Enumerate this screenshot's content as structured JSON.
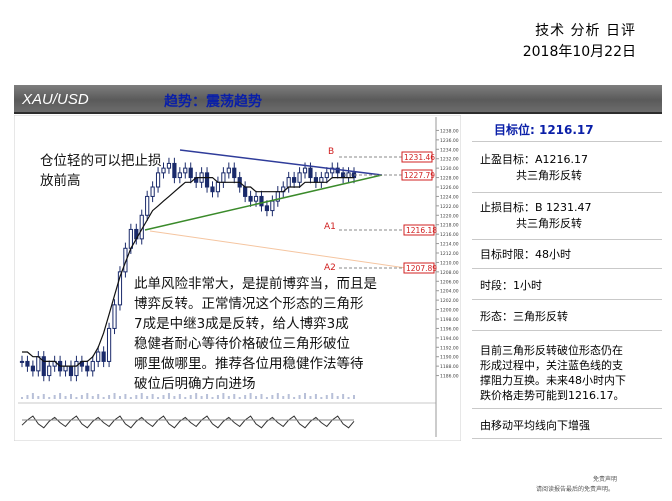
{
  "header": {
    "title": "技术 分析 日评",
    "date": "2018年10月22日"
  },
  "band": {
    "pair": "XAU/USD",
    "trend": "趋势：震荡趋势"
  },
  "chart_annotations": {
    "marker_b": "B",
    "marker_a1": "A1",
    "marker_a2": "A2",
    "level_b": "1231.46",
    "level_current": "1227.79",
    "level_a1": "1216.18",
    "level_a2": "1207.89"
  },
  "chart_data": {
    "type": "line",
    "price_axis_ticks": [
      "1238.00",
      "1236.00",
      "1234.00",
      "1232.00",
      "1230.00",
      "1228.00",
      "1226.00",
      "1224.00",
      "1222.00",
      "1220.00",
      "1218.00",
      "1216.00",
      "1214.00",
      "1212.00",
      "1210.00",
      "1208.00",
      "1206.00",
      "1204.00",
      "1202.00",
      "1200.00",
      "1198.00",
      "1196.00",
      "1194.00",
      "1192.00",
      "1190.00",
      "1188.00",
      "1186.00"
    ],
    "ylim": [
      1184,
      1240
    ],
    "close": [
      1189,
      1188,
      1187,
      1190,
      1186,
      1188,
      1189,
      1187,
      1188,
      1186,
      1189,
      1188,
      1187,
      1189,
      1191,
      1189,
      1196,
      1201,
      1208,
      1213,
      1217,
      1215,
      1220,
      1224,
      1226,
      1229,
      1230,
      1231,
      1228,
      1229,
      1230,
      1228,
      1227,
      1229,
      1226,
      1225,
      1227,
      1229,
      1230,
      1228,
      1226,
      1224,
      1223,
      1224,
      1222,
      1221,
      1223,
      1225,
      1226,
      1228,
      1227,
      1229,
      1230,
      1228,
      1227,
      1228,
      1229,
      1230,
      1229,
      1228,
      1229,
      1228
    ],
    "moving_average": [
      1191,
      1191,
      1190,
      1190,
      1189,
      1189,
      1189,
      1188,
      1188,
      1188,
      1188,
      1189,
      1189,
      1190,
      1192,
      1195,
      1199,
      1203,
      1207,
      1210,
      1213,
      1215,
      1217,
      1219,
      1221,
      1222,
      1223,
      1224,
      1225,
      1226,
      1227,
      1227,
      1228,
      1228,
      1228,
      1228,
      1227,
      1227,
      1227,
      1227,
      1227,
      1226,
      1226,
      1225,
      1225,
      1225,
      1225,
      1225,
      1225,
      1226,
      1226,
      1226,
      1227,
      1227,
      1227,
      1227,
      1227,
      1228,
      1228,
      1228,
      1228,
      1228
    ],
    "oscillator": [
      46,
      50,
      53,
      47,
      44,
      49,
      52,
      48,
      45,
      50,
      53,
      47,
      44,
      49,
      52,
      48,
      45,
      50,
      53,
      47,
      44,
      49,
      52,
      48,
      45,
      50,
      53,
      47,
      44,
      49,
      52,
      48,
      45,
      50,
      53,
      47,
      44,
      49,
      52,
      48,
      45,
      50,
      53,
      47,
      44,
      49,
      52,
      48,
      45,
      50,
      53,
      47,
      44,
      49,
      52,
      48,
      45,
      50,
      53,
      47,
      44,
      49
    ]
  },
  "overlay_text": {
    "line1": "仓位轻的可以把止损",
    "line2": "放前高",
    "para": [
      "此单风险非常大，是提前博弈当，而且是",
      "博弈反转。正常情况这个形态的三角形",
      "7成是中继3成是反转，给人博弈3成",
      "稳健者耐心等待价格破位三角形破位",
      "哪里做哪里。推荐各位用稳健作法等待",
      "破位后明确方向进场"
    ]
  },
  "sidebar": {
    "target": "目标位: 1216.17",
    "take_profit": "止盈目标：A1216.17",
    "take_profit_note": "共三角形反转",
    "stop_loss": "止损目标：B 1231.47",
    "stop_loss_note": "共三角形反转",
    "time_limit": "目标时限：48小时",
    "period": "时段：1小时",
    "pattern": "形态：三角形反转",
    "analysis": [
      "目前三角形反转破位形态仍在",
      "形成过程中，关注蓝色线的支",
      "撑阻力互换。未来48小时内下",
      "跌价格走势可能到1216.17。"
    ],
    "note": "由移动平均线向下增强"
  },
  "footer": {
    "line1": "免责声明",
    "line2": "请阅读报告最后的免责声明。"
  },
  "colors": {
    "resistance": "#2f3c9a",
    "support": "#3a8a2a",
    "level_red": "#d02020",
    "fib_orange": "#f0a060"
  }
}
